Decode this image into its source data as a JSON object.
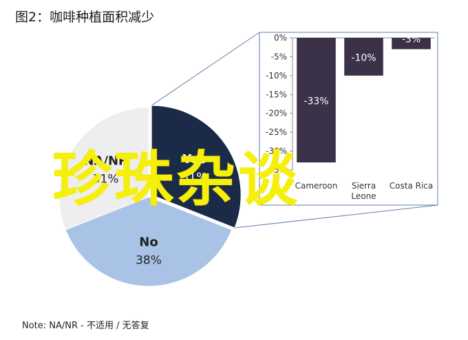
{
  "page": {
    "title": "图2：咖啡种植面积减少",
    "note": "Note: NA/NR - 不适用 / 无答复",
    "watermark": "珍珠杂谈"
  },
  "chart_data": [
    {
      "type": "pie",
      "slices": [
        {
          "label": "Yes",
          "value": 31,
          "value_label": "31%",
          "color": "#1b2a47"
        },
        {
          "label": "No",
          "value": 38,
          "value_label": "38%",
          "color": "#a9c3e6"
        },
        {
          "label": "NA/NR",
          "value": 31,
          "value_label": "31%",
          "color": "#eeeeee"
        }
      ],
      "exploded_slice": "Yes"
    },
    {
      "type": "bar",
      "categories": [
        "Cameroon",
        "Sierra Leone",
        "Costa Rica"
      ],
      "values": [
        -33,
        -10,
        -3
      ],
      "value_labels": [
        "-33%",
        "-10%",
        "-3%"
      ],
      "ylim": [
        -35,
        0
      ],
      "yticks": [
        "0%",
        "-5%",
        "-10%",
        "-15%",
        "-20%",
        "-25%",
        "-30%",
        "-35%"
      ],
      "color": "#3b3148",
      "grid": false
    }
  ]
}
